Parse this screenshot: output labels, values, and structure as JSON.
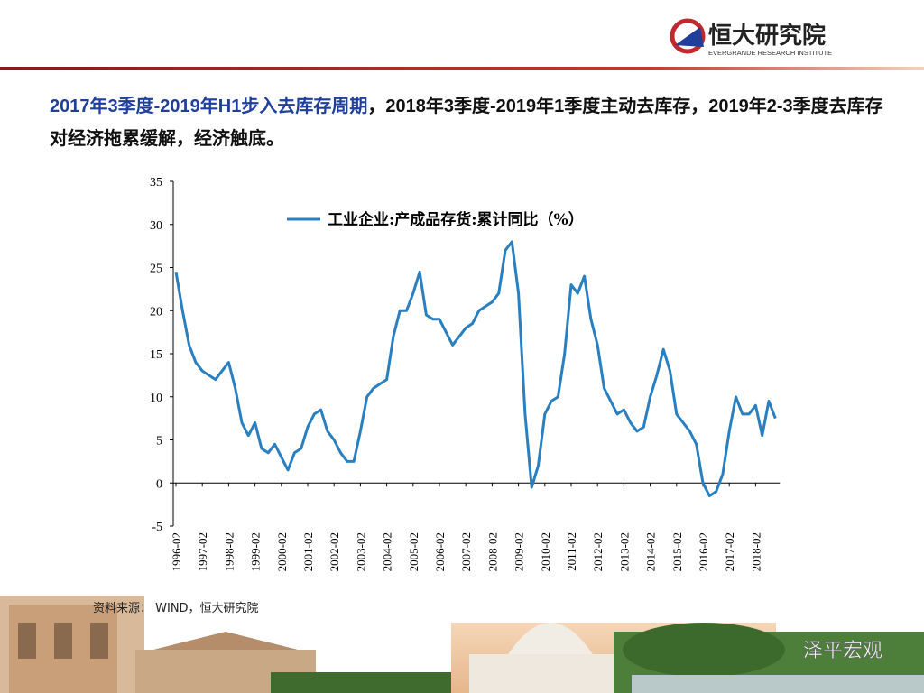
{
  "header": {
    "brand": "恒大研究院",
    "brand_en": "EVERGRANDE RESEARCH INSTITUTE"
  },
  "title": {
    "highlight": "2017年3季度-2019年H1步入去库存周期",
    "rest": "，2018年3季度-2019年1季度主动去库存，2019年2-3季度去库存对经济拖累缓解，经济触底。"
  },
  "source": "资料来源： WIND，恒大研究院",
  "watermark": "泽平宏观",
  "chart_data": {
    "type": "line",
    "x": [
      "1996-02",
      null,
      null,
      null,
      "1997-02",
      null,
      null,
      null,
      "1998-02",
      null,
      null,
      null,
      "1999-02",
      null,
      null,
      null,
      "2000-02",
      null,
      null,
      null,
      "2001-02",
      null,
      null,
      null,
      "2002-02",
      null,
      null,
      null,
      "2003-02",
      null,
      null,
      null,
      "2004-02",
      null,
      null,
      null,
      "2005-02",
      null,
      null,
      null,
      "2006-02",
      null,
      null,
      null,
      "2007-02",
      null,
      null,
      null,
      "2008-02",
      null,
      null,
      null,
      "2009-02",
      null,
      null,
      null,
      "2010-02",
      null,
      null,
      null,
      "2011-02",
      null,
      null,
      null,
      "2012-02",
      null,
      null,
      null,
      "2013-02",
      null,
      null,
      null,
      "2014-02",
      null,
      null,
      null,
      "2015-02",
      null,
      null,
      null,
      "2016-02",
      null,
      null,
      null,
      "2017-02",
      null,
      null,
      null,
      "2018-02",
      null,
      null,
      null
    ],
    "series": [
      {
        "name": "工业企业:产成品存货:累计同比（%）",
        "color": "#2a7fc0",
        "values": [
          24.5,
          20,
          16,
          14,
          13,
          12.5,
          12,
          13,
          14,
          11,
          7,
          5.5,
          7,
          4,
          3.5,
          4.5,
          3,
          1.5,
          3.5,
          4,
          6.5,
          8,
          8.5,
          6,
          5,
          3.5,
          2.5,
          2.5,
          6,
          10,
          11,
          11.5,
          12,
          17,
          20,
          20,
          22,
          24.5,
          19.5,
          19,
          19,
          17.5,
          16,
          17,
          18,
          18.5,
          20,
          20.5,
          21,
          22,
          27,
          28,
          22,
          8,
          -0.5,
          2,
          8,
          9.5,
          10,
          15,
          23,
          22,
          24,
          19,
          16,
          11,
          9.5,
          8,
          8.5,
          7,
          6,
          6.5,
          10,
          12.5,
          15.5,
          13,
          8,
          7,
          6,
          4.5,
          0,
          -1.5,
          -1,
          1,
          6,
          10,
          8,
          8,
          9,
          5.5,
          9.5,
          7.5
        ]
      }
    ],
    "ylim": [
      -5,
      35
    ],
    "yticks": [
      -5,
      0,
      5,
      10,
      15,
      20,
      25,
      30,
      35
    ]
  }
}
